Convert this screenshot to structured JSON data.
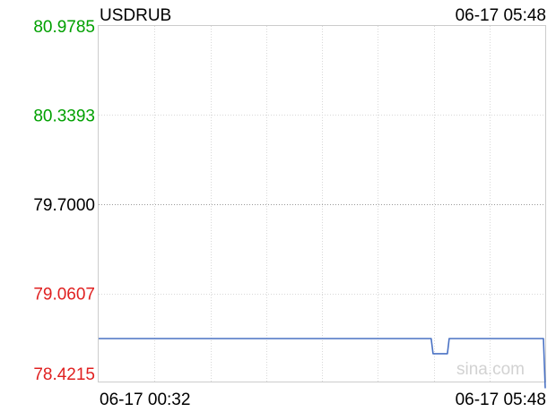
{
  "chart_data": {
    "type": "line",
    "title": "USDRUB",
    "timestamp": "06-17 05:48",
    "watermark": "sina.com",
    "y_ticks": [
      "80.9785",
      "80.3393",
      "79.7000",
      "79.0607",
      "78.4215"
    ],
    "ylim": [
      78.4215,
      80.9785
    ],
    "reference_value": 79.7,
    "x_labels": [
      "06-17 00:32",
      "06-17 05:48"
    ],
    "colors": {
      "up": "#00a000",
      "down": "#e02020",
      "neutral": "#000000",
      "line": "#4a72c4"
    },
    "series": [
      {
        "x": [
          0,
          0.7446,
          0.7487,
          0.7809,
          0.7849,
          0.996,
          1.0
        ],
        "values": [
          78.736,
          78.736,
          78.628,
          78.628,
          78.736,
          78.736,
          78.38
        ]
      }
    ]
  }
}
